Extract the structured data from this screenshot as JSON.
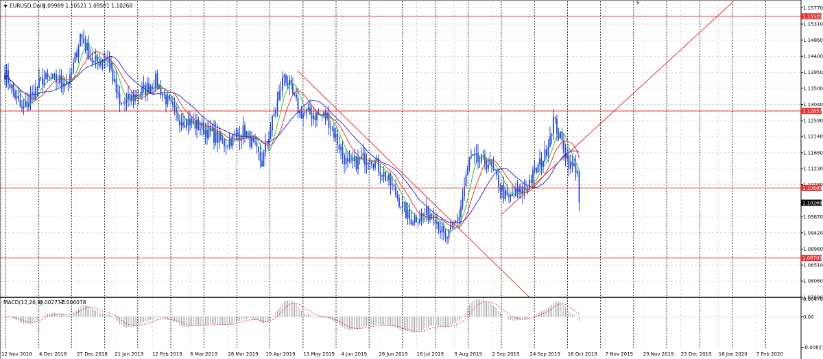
{
  "header": {
    "symbol_timeframe": "EURUSD,Daily",
    "ohlc": "1.09989 1.10521 1.09501 1.10268"
  },
  "indicator": {
    "label": "MACD(12,26,9)",
    "main_value": "-0.002732",
    "signal_value": "-0.006078"
  },
  "colors": {
    "background": "#ffffff",
    "grid": "#bfbfbf",
    "candles": "#1e46d2",
    "ma_fast": "#22c022",
    "ma_mid": "#e02020",
    "ma_slow": "#1a1acc",
    "horizontal_levels": "#e53030",
    "trend_lines": "#e53030",
    "level_tag": "#e53030",
    "price_tag": "#000000",
    "macd_hist": "#a8a8a8",
    "macd_signal": "#e02020",
    "separator": "#000000"
  },
  "chart_data": [
    {
      "type": "candlestick",
      "title": "",
      "symbol": "EURUSD",
      "timeframe": "Daily",
      "x_labels": [
        "12 Nov 2018",
        "4 Dec 2018",
        "27 Dec 2018",
        "21 Jan 2019",
        "12 Feb 2019",
        "6 Mar 2019",
        "28 Mar 2019",
        "19 Apr 2019",
        "13 May 2019",
        "4 Jun 2019",
        "26 Jun 2019",
        "18 Jul 2019",
        "9 Aug 2019",
        "2 Sep 2019",
        "24 Sep 2019",
        "16 Oct 2019",
        "7 Nov 2019",
        "29 Nov 2019",
        "23 Dec 2019",
        "16 Jan 2020",
        "7 Feb 2020"
      ],
      "y_ticks": [
        "1.15770",
        "1.15310",
        "1.14860",
        "1.14400",
        "1.13950",
        "1.13500",
        "1.13040",
        "1.12590",
        "1.12140",
        "1.11680",
        "1.11230",
        "1.10780",
        "1.09870",
        "1.09420",
        "1.08960",
        "1.08510",
        "1.08060",
        "1.07600"
      ],
      "ylim": [
        1.076,
        1.1595
      ],
      "bars": 336,
      "path_anchors": [
        {
          "bar": 0,
          "price": 1.1395
        },
        {
          "bar": 10,
          "price": 1.1285
        },
        {
          "bar": 22,
          "price": 1.1375
        },
        {
          "bar": 38,
          "price": 1.137
        },
        {
          "bar": 44,
          "price": 1.15
        },
        {
          "bar": 52,
          "price": 1.142
        },
        {
          "bar": 60,
          "price": 1.144
        },
        {
          "bar": 67,
          "price": 1.13
        },
        {
          "bar": 80,
          "price": 1.134
        },
        {
          "bar": 88,
          "price": 1.137
        },
        {
          "bar": 100,
          "price": 1.127
        },
        {
          "bar": 110,
          "price": 1.125
        },
        {
          "bar": 118,
          "price": 1.123
        },
        {
          "bar": 128,
          "price": 1.1195
        },
        {
          "bar": 140,
          "price": 1.123
        },
        {
          "bar": 150,
          "price": 1.114
        },
        {
          "bar": 163,
          "price": 1.139
        },
        {
          "bar": 172,
          "price": 1.128
        },
        {
          "bar": 188,
          "price": 1.127
        },
        {
          "bar": 200,
          "price": 1.113
        },
        {
          "bar": 213,
          "price": 1.116
        },
        {
          "bar": 225,
          "price": 1.108
        },
        {
          "bar": 236,
          "price": 1.098
        },
        {
          "bar": 250,
          "price": 1.1
        },
        {
          "bar": 257,
          "price": 1.092
        },
        {
          "bar": 265,
          "price": 1.099
        },
        {
          "bar": 271,
          "price": 1.115
        },
        {
          "bar": 282,
          "price": 1.114
        },
        {
          "bar": 293,
          "price": 1.1035
        },
        {
          "bar": 304,
          "price": 1.107
        },
        {
          "bar": 315,
          "price": 1.116
        },
        {
          "bar": 320,
          "price": 1.126
        },
        {
          "bar": 330,
          "price": 1.113
        },
        {
          "bar": 342,
          "price": 1.111
        },
        {
          "bar": 352,
          "price": 1.097
        },
        {
          "bar": 360,
          "price": 1.08
        },
        {
          "bar": 366,
          "price": 1.089
        },
        {
          "bar": 370,
          "price": 1.1027
        }
      ],
      "horizontal_levels": [
        {
          "price": 1.15529,
          "label": "1.15529"
        },
        {
          "price": 1.12857,
          "label": "1.12857"
        },
        {
          "price": 1.10685,
          "label": "1.10685"
        },
        {
          "price": 1.08709,
          "label": "1.08709"
        }
      ],
      "current_price": {
        "price": 1.10268,
        "label": "1.10268"
      },
      "trend_lines": [
        {
          "from": {
            "bar": 171,
            "price": 1.1398
          },
          "to": {
            "bar": 306,
            "price": 1.076
          }
        },
        {
          "from": {
            "bar": 290,
            "price": 1.0995
          },
          "to": {
            "bar": 425,
            "price": 1.1595
          }
        }
      ],
      "moving_averages": [
        {
          "color_key": "ma_fast",
          "period": 8
        },
        {
          "color_key": "ma_mid",
          "period": 14
        },
        {
          "color_key": "ma_slow",
          "period": 24
        }
      ],
      "grid": true
    },
    {
      "type": "histogram",
      "title": "",
      "name": "MACD(12,26,9)",
      "y_ticks": [
        "0.004709",
        "0.00",
        "-0.008211"
      ],
      "ylim": [
        -0.00835,
        0.0048
      ],
      "zero_line": true,
      "signal_style": "dashed"
    }
  ]
}
